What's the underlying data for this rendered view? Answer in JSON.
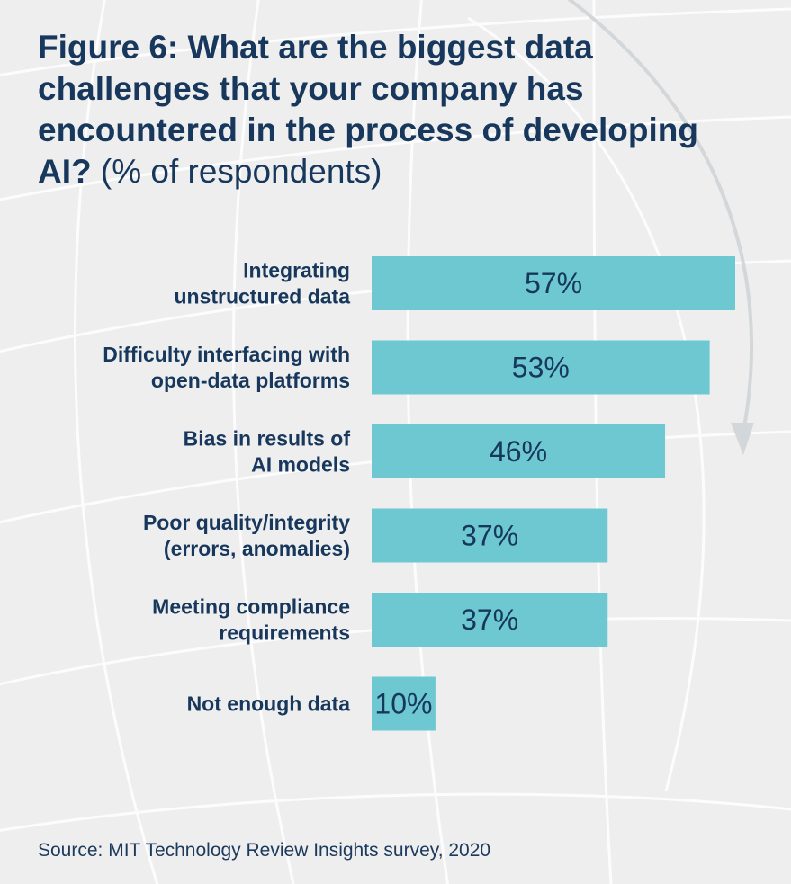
{
  "title": {
    "bold": "Figure 6: What are the biggest data challenges that your company has encountered in the process of developing AI?",
    "suffix": " (% of respondents)"
  },
  "source": "Source: MIT Technology Review Insights survey, 2020",
  "colors": {
    "bar": "#6dc8d1",
    "text": "#17385c",
    "background": "#eeeeee"
  },
  "chart_data": {
    "type": "bar",
    "orientation": "horizontal",
    "categories": [
      [
        "Integrating",
        "unstructured data"
      ],
      [
        "Difficulty interfacing with",
        "open-data platforms"
      ],
      [
        "Bias in results of",
        "AI models"
      ],
      [
        "Poor quality/integrity",
        "(errors, anomalies)"
      ],
      [
        "Meeting compliance",
        "requirements"
      ],
      [
        "Not enough data"
      ]
    ],
    "values": [
      57,
      53,
      46,
      37,
      37,
      10
    ],
    "value_labels": [
      "57%",
      "53%",
      "46%",
      "37%",
      "37%",
      "10%"
    ],
    "unit": "%",
    "xlim": [
      0,
      57
    ],
    "grid": false,
    "legend": "none"
  }
}
